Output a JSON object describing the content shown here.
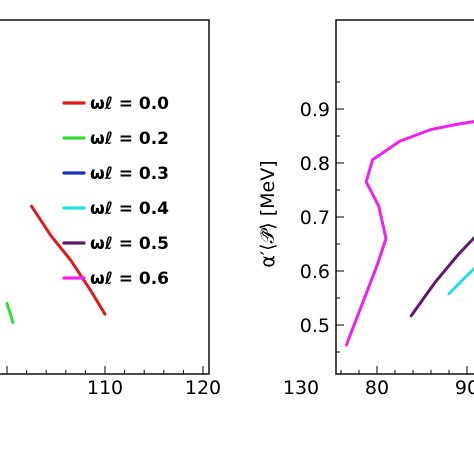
{
  "legend": {
    "items": [
      {
        "label": "ωℓ = 0.0",
        "color": "#e31a1c"
      },
      {
        "label": "ωℓ = 0.2",
        "color": "#33dd33"
      },
      {
        "label": "ωℓ = 0.3",
        "color": "#1f2fb4"
      },
      {
        "label": "ωℓ = 0.4",
        "color": "#22e0e8"
      },
      {
        "label": "ωℓ = 0.5",
        "color": "#5e1a6e"
      },
      {
        "label": "ωℓ = 0.6",
        "color": "#ee22ee"
      }
    ]
  },
  "chart_data": [
    {
      "type": "line",
      "xlim": [
        100,
        130
      ],
      "x_ticks": [
        "110",
        "120",
        "130"
      ],
      "ylabel": "",
      "series": [
        {
          "name": "ωℓ = 0.0",
          "color": "#e31a1c",
          "points": [
            [
              102.5,
              0.72
            ],
            [
              104.5,
              0.665
            ],
            [
              106.5,
              0.62
            ],
            [
              108.5,
              0.565
            ],
            [
              110.0,
              0.52
            ]
          ]
        },
        {
          "name": "ωℓ = 0.2",
          "color": "#33dd33",
          "points": [
            [
              100.0,
              0.54
            ],
            [
              100.6,
              0.505
            ]
          ]
        }
      ]
    },
    {
      "type": "line",
      "xlim": [
        75,
        92
      ],
      "ylim": [
        0.45,
        0.95
      ],
      "x_ticks": [
        "80",
        "90"
      ],
      "y_ticks": [
        "0.5",
        "0.6",
        "0.7",
        "0.8",
        "0.9"
      ],
      "ylabel": "α′⟨𝒫̂⟩ [MeV]",
      "series": [
        {
          "name": "ωℓ = 0.6",
          "color": "#ee22ee",
          "points": [
            [
              76.6,
              0.463
            ],
            [
              78.5,
              0.545
            ],
            [
              80.0,
              0.61
            ],
            [
              81.0,
              0.66
            ],
            [
              80.2,
              0.72
            ],
            [
              78.8,
              0.765
            ],
            [
              79.5,
              0.806
            ],
            [
              82.5,
              0.84
            ],
            [
              86.0,
              0.862
            ],
            [
              89.0,
              0.872
            ],
            [
              92.0,
              0.88
            ]
          ]
        },
        {
          "name": "ωℓ = 0.5",
          "color": "#5e1a6e",
          "points": [
            [
              83.8,
              0.517
            ],
            [
              86.5,
              0.58
            ],
            [
              89.0,
              0.63
            ],
            [
              91.0,
              0.665
            ]
          ]
        },
        {
          "name": "ωℓ = 0.4",
          "color": "#22e0e8",
          "points": [
            [
              88.0,
              0.558
            ],
            [
              90.2,
              0.595
            ],
            [
              92.0,
              0.622
            ]
          ]
        }
      ]
    }
  ]
}
